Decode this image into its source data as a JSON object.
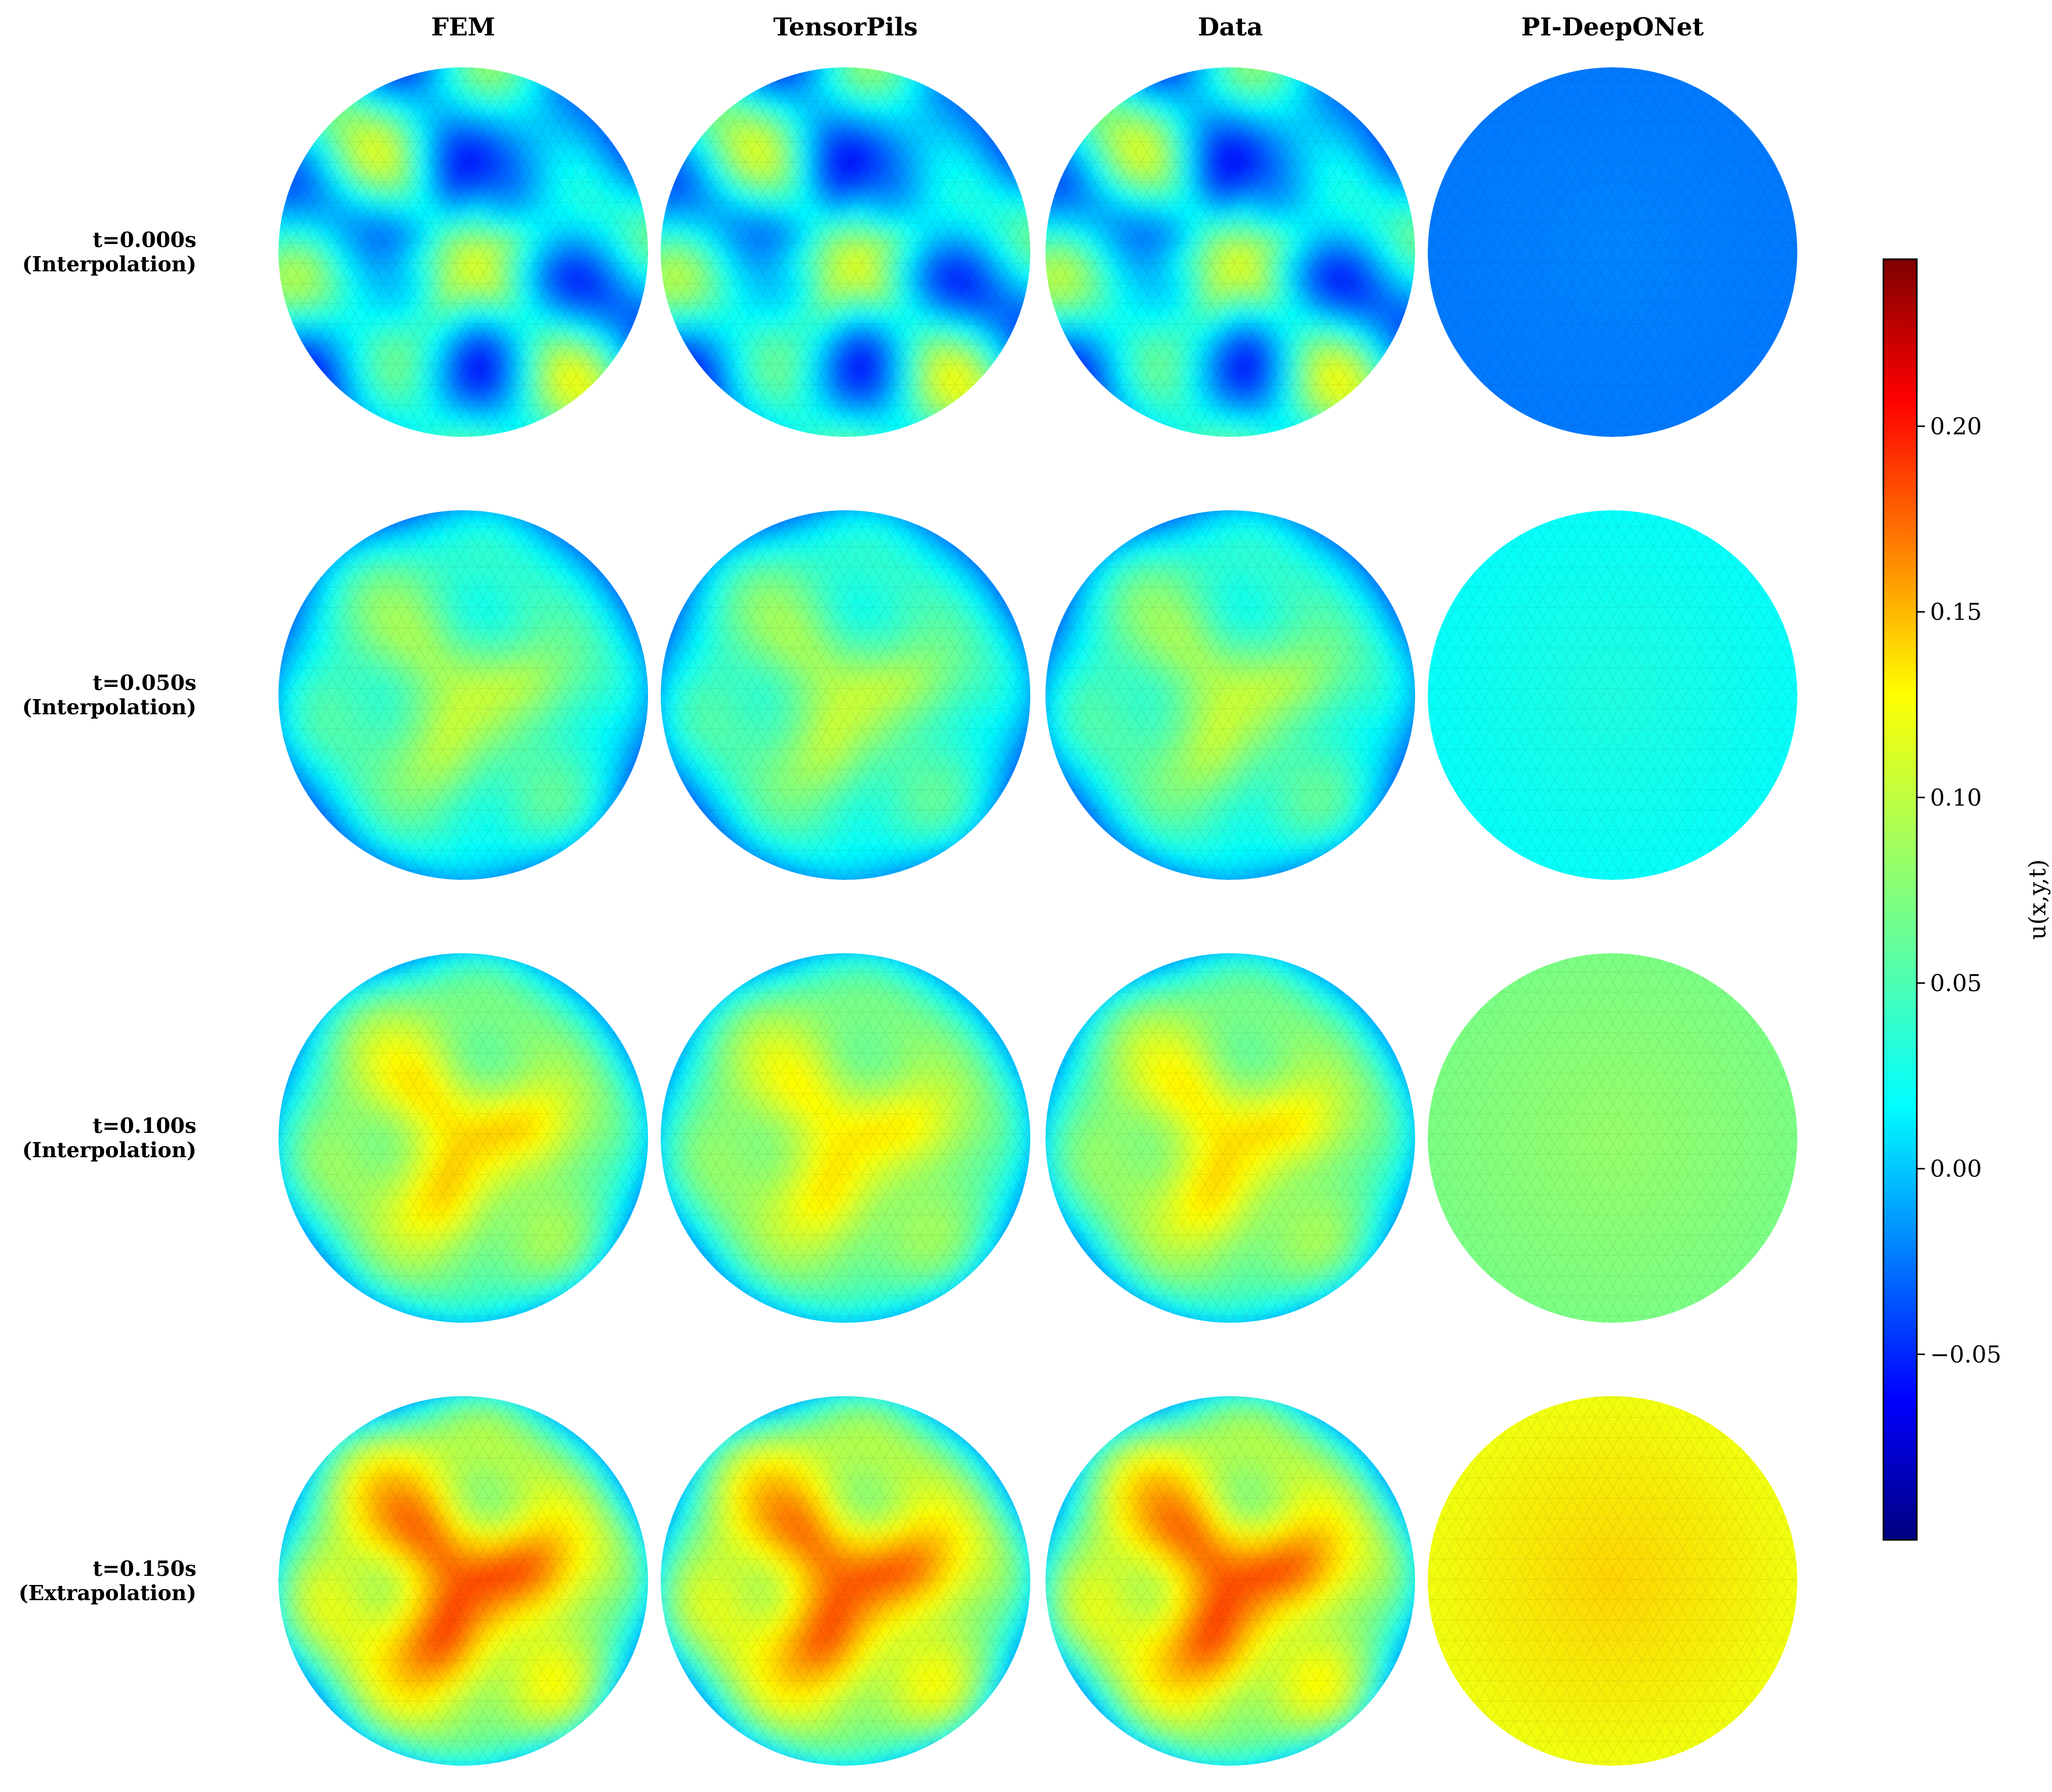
{
  "chart_data": {
    "type": "heatmap",
    "description_free": true,
    "columns": [
      "FEM",
      "TensorPils",
      "Data",
      "PI-DeepONet"
    ],
    "rows": [
      {
        "time": "t=0.000s",
        "regime": "(Interpolation)"
      },
      {
        "time": "t=0.050s",
        "regime": "(Interpolation)"
      },
      {
        "time": "t=0.100s",
        "regime": "(Interpolation)"
      },
      {
        "time": "t=0.150s",
        "regime": "(Extrapolation)"
      }
    ],
    "colormap": "jet",
    "colorbar": {
      "label": "u(x,y,t)",
      "vmin": -0.1,
      "vmax": 0.245,
      "ticks": [
        {
          "value": 0.2,
          "label": "0.20"
        },
        {
          "value": 0.15,
          "label": "0.15"
        },
        {
          "value": 0.1,
          "label": "0.10"
        },
        {
          "value": 0.05,
          "label": "0.05"
        },
        {
          "value": 0.0,
          "label": "0.00"
        },
        {
          "value": -0.05,
          "label": "−0.05"
        }
      ]
    },
    "fields": {
      "FEM": [
        {
          "base": 0.02,
          "amp": 0.06,
          "flip": false
        },
        {
          "base": 0.055,
          "amp": 0.04,
          "flip": false
        },
        {
          "base": 0.08,
          "amp": 0.06,
          "flip": false
        },
        {
          "base": 0.1,
          "amp": 0.09,
          "flip": false
        }
      ],
      "TensorPils": [
        {
          "base": 0.02,
          "amp": 0.06,
          "flip": false
        },
        {
          "base": 0.055,
          "amp": 0.04,
          "flip": false
        },
        {
          "base": 0.08,
          "amp": 0.05,
          "flip": false
        },
        {
          "base": 0.1,
          "amp": 0.085,
          "flip": false
        }
      ],
      "Data": [
        {
          "base": 0.02,
          "amp": 0.06,
          "flip": false
        },
        {
          "base": 0.055,
          "amp": 0.04,
          "flip": false
        },
        {
          "base": 0.08,
          "amp": 0.055,
          "flip": false
        },
        {
          "base": 0.1,
          "amp": 0.09,
          "flip": false
        }
      ],
      "PI-DeepONet": [
        {
          "uniform": -0.012,
          "center": -0.012
        },
        {
          "uniform": 0.035,
          "center": 0.04
        },
        {
          "uniform": 0.075,
          "center": 0.08
        },
        {
          "uniform": 0.115,
          "center": 0.13
        }
      ]
    }
  }
}
